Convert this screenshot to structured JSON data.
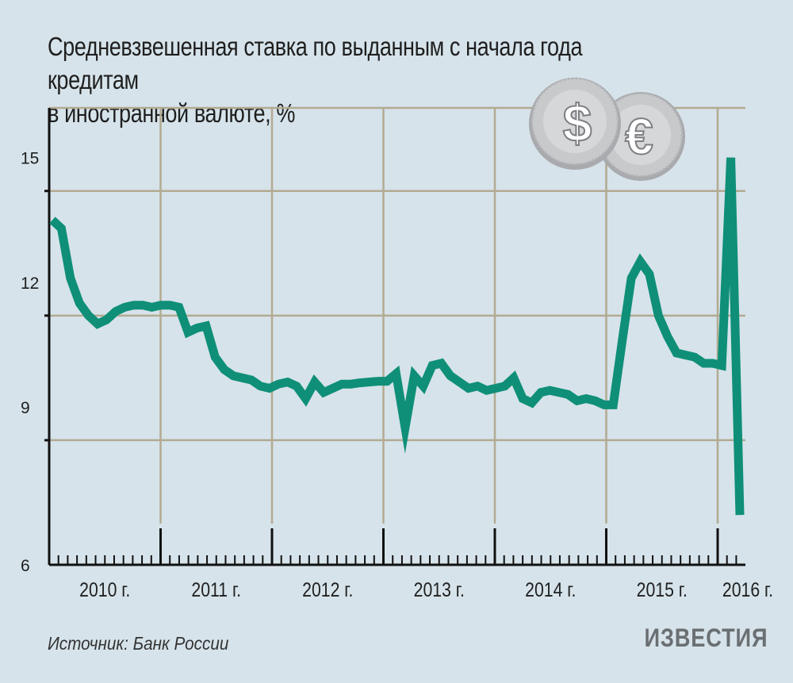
{
  "chart_data": {
    "type": "line",
    "title_lines": [
      "Средневзвешенная ставка по выданным с начала года кредитам",
      "в иностранной валюте, %"
    ],
    "xlabel": "",
    "ylabel": "",
    "x_tick_labels": [
      "2010 г.",
      "2011 г.",
      "2012 г.",
      "2013 г.",
      "2014 г.",
      "2015 г.",
      "2016 г."
    ],
    "y_ticks": [
      6,
      9,
      12,
      15
    ],
    "ylim": [
      6,
      17
    ],
    "grid": true,
    "line_color": "#0f8f78",
    "grid_color": "#b2aa92",
    "series": [
      {
        "values": [
          14.3,
          14.1,
          12.9,
          12.3,
          12.0,
          11.8,
          11.9,
          12.1,
          12.2,
          12.25,
          12.25,
          12.2,
          12.25,
          12.25,
          12.2,
          11.6,
          11.7,
          11.75,
          11.0,
          10.7,
          10.55,
          10.5,
          10.45,
          10.3,
          10.25,
          10.35,
          10.4,
          10.3,
          10.0,
          10.4,
          10.15,
          10.25,
          10.35,
          10.35,
          10.38,
          10.4,
          10.42,
          10.42,
          10.6,
          9.3,
          10.55,
          10.3,
          10.8,
          10.85,
          10.55,
          10.4,
          10.25,
          10.3,
          10.2,
          10.25,
          10.3,
          10.5,
          10.0,
          9.9,
          10.15,
          10.2,
          10.15,
          10.1,
          9.95,
          10.0,
          9.95,
          9.85,
          9.85,
          11.4,
          12.9,
          13.3,
          13.0,
          12.0,
          11.5,
          11.1,
          11.05,
          11.0,
          10.85,
          10.85,
          10.8,
          15.8,
          7.2
        ]
      }
    ]
  },
  "source_text": "Источник: Банк России",
  "logo_text": "ИЗВЕСТИЯ",
  "coins": {
    "left_symbol": "$",
    "right_symbol": "€",
    "coin_color": "#c8c9cb",
    "coin_face": "#d4d5d7"
  }
}
